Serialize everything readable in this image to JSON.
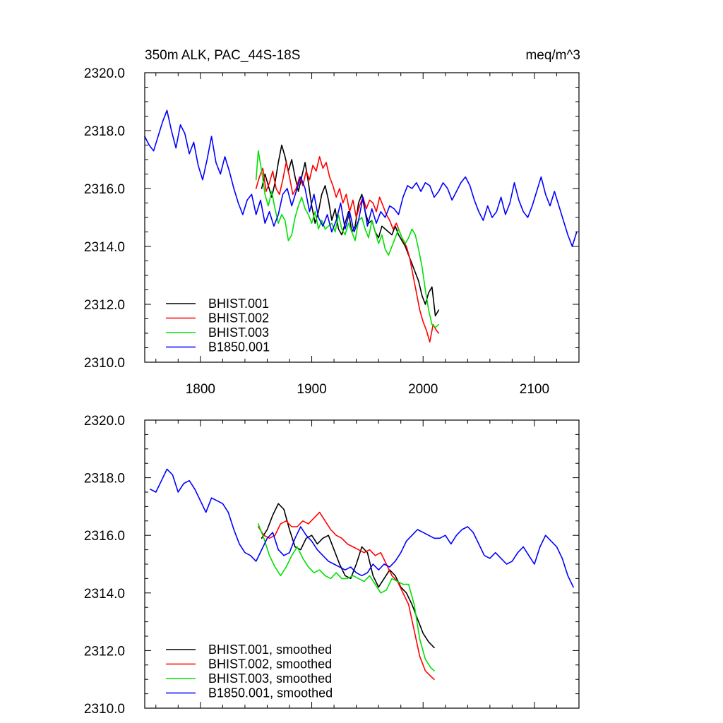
{
  "chart_data": [
    {
      "type": "line",
      "title": "350m ALK, PAC_44S-18S",
      "units": "meq/m^3",
      "xlim": [
        1750,
        2140
      ],
      "ylim": [
        2310,
        2320
      ],
      "xticks": [
        1800,
        1900,
        2000,
        2100
      ],
      "yticks": [
        2310,
        2312,
        2314,
        2316,
        2318,
        2320
      ],
      "xtick_labels": [
        "1800",
        "1900",
        "2000",
        "2100"
      ],
      "ytick_labels": [
        "2310.0",
        "2312.0",
        "2314.0",
        "2316.0",
        "2318.0",
        "2320.0"
      ],
      "legend_position": "bottom-left",
      "series": [
        {
          "name": "BHIST.001",
          "color": "#000000",
          "x": [
            1855,
            1858,
            1861,
            1864,
            1867,
            1870,
            1873,
            1876,
            1879,
            1882,
            1885,
            1888,
            1891,
            1894,
            1897,
            1900,
            1903,
            1906,
            1909,
            1912,
            1915,
            1918,
            1921,
            1924,
            1927,
            1930,
            1933,
            1936,
            1939,
            1942,
            1945,
            1948,
            1951,
            1954,
            1957,
            1960,
            1963,
            1966,
            1969,
            1972,
            1975,
            1978,
            1981,
            1984,
            1987,
            1990,
            1993,
            1996,
            1999,
            2002,
            2005,
            2008,
            2011,
            2014
          ],
          "y": [
            2316.0,
            2316.5,
            2316.1,
            2315.7,
            2316.2,
            2316.9,
            2317.5,
            2317.1,
            2316.6,
            2317.0,
            2316.4,
            2315.9,
            2316.4,
            2316.9,
            2316.2,
            2315.4,
            2314.8,
            2315.2,
            2315.8,
            2316.1,
            2315.6,
            2314.9,
            2315.3,
            2314.6,
            2314.4,
            2314.8,
            2315.2,
            2314.5,
            2314.7,
            2315.5,
            2315.8,
            2315.2,
            2314.8,
            2314.9,
            2314.5,
            2314.3,
            2314.7,
            2314.6,
            2314.5,
            2314.4,
            2314.7,
            2314.4,
            2314.2,
            2314.0,
            2313.7,
            2313.4,
            2313.1,
            2312.8,
            2312.3,
            2312.0,
            2312.4,
            2312.6,
            2311.6,
            2311.8
          ]
        },
        {
          "name": "BHIST.002",
          "color": "#ff0000",
          "x": [
            1850,
            1853,
            1856,
            1859,
            1862,
            1865,
            1868,
            1871,
            1874,
            1877,
            1880,
            1883,
            1886,
            1889,
            1892,
            1895,
            1898,
            1901,
            1904,
            1907,
            1910,
            1913,
            1916,
            1919,
            1922,
            1925,
            1928,
            1931,
            1934,
            1937,
            1940,
            1943,
            1946,
            1949,
            1952,
            1955,
            1958,
            1961,
            1964,
            1967,
            1970,
            1973,
            1976,
            1979,
            1982,
            1985,
            1988,
            1991,
            1994,
            1997,
            2000,
            2003,
            2006,
            2009,
            2012,
            2014
          ],
          "y": [
            2316.0,
            2316.4,
            2316.7,
            2315.9,
            2316.2,
            2316.6,
            2316.0,
            2315.8,
            2316.3,
            2316.9,
            2316.4,
            2315.8,
            2316.0,
            2316.4,
            2316.1,
            2316.6,
            2316.3,
            2316.8,
            2316.6,
            2317.1,
            2316.7,
            2316.9,
            2316.4,
            2316.1,
            2315.7,
            2316.0,
            2315.5,
            2315.8,
            2315.2,
            2315.6,
            2315.0,
            2315.4,
            2315.7,
            2315.3,
            2315.6,
            2315.5,
            2315.2,
            2315.7,
            2315.4,
            2315.1,
            2314.9,
            2314.6,
            2314.8,
            2314.5,
            2314.2,
            2314.0,
            2313.6,
            2313.0,
            2312.4,
            2311.8,
            2311.4,
            2311.1,
            2310.7,
            2311.3,
            2311.1,
            2311.0
          ]
        },
        {
          "name": "BHIST.003",
          "color": "#00e000",
          "x": [
            1850,
            1852,
            1855,
            1858,
            1861,
            1864,
            1867,
            1870,
            1873,
            1876,
            1879,
            1882,
            1885,
            1888,
            1891,
            1894,
            1897,
            1900,
            1903,
            1906,
            1909,
            1912,
            1915,
            1918,
            1921,
            1924,
            1927,
            1930,
            1933,
            1936,
            1939,
            1942,
            1945,
            1948,
            1951,
            1954,
            1957,
            1960,
            1963,
            1966,
            1969,
            1972,
            1975,
            1978,
            1981,
            1984,
            1987,
            1990,
            1993,
            1996,
            1999,
            2002,
            2005,
            2008,
            2011,
            2014
          ],
          "y": [
            2316.3,
            2317.3,
            2316.6,
            2315.8,
            2315.4,
            2315.9,
            2315.3,
            2314.8,
            2315.1,
            2314.9,
            2314.2,
            2314.4,
            2315.0,
            2315.4,
            2315.7,
            2315.3,
            2315.1,
            2314.8,
            2315.2,
            2314.6,
            2314.9,
            2314.6,
            2314.7,
            2314.8,
            2314.5,
            2315.1,
            2314.6,
            2314.4,
            2314.8,
            2314.5,
            2314.2,
            2314.9,
            2315.0,
            2314.6,
            2314.3,
            2314.9,
            2314.5,
            2314.1,
            2314.4,
            2313.9,
            2313.7,
            2314.0,
            2314.3,
            2314.6,
            2314.3,
            2314.1,
            2314.3,
            2314.6,
            2314.4,
            2313.9,
            2313.3,
            2312.5,
            2311.8,
            2311.3,
            2311.2,
            2311.3
          ]
        },
        {
          "name": "B1850.001",
          "color": "#0000ff",
          "x": [
            1750,
            1754,
            1758,
            1762,
            1766,
            1770,
            1774,
            1778,
            1782,
            1786,
            1790,
            1794,
            1798,
            1802,
            1806,
            1810,
            1814,
            1818,
            1822,
            1826,
            1830,
            1834,
            1838,
            1842,
            1846,
            1850,
            1854,
            1858,
            1862,
            1866,
            1870,
            1874,
            1878,
            1882,
            1886,
            1890,
            1894,
            1898,
            1902,
            1906,
            1910,
            1914,
            1918,
            1922,
            1926,
            1930,
            1934,
            1938,
            1942,
            1946,
            1950,
            1954,
            1958,
            1962,
            1966,
            1970,
            1974,
            1978,
            1982,
            1986,
            1990,
            1994,
            1998,
            2002,
            2006,
            2010,
            2014,
            2018,
            2022,
            2026,
            2030,
            2034,
            2038,
            2042,
            2046,
            2050,
            2054,
            2058,
            2062,
            2066,
            2070,
            2074,
            2078,
            2082,
            2086,
            2090,
            2094,
            2098,
            2102,
            2106,
            2110,
            2114,
            2118,
            2122,
            2126,
            2130,
            2134,
            2138
          ],
          "y": [
            2317.8,
            2317.5,
            2317.3,
            2317.8,
            2318.3,
            2318.7,
            2318.0,
            2317.4,
            2318.2,
            2317.9,
            2317.2,
            2317.6,
            2316.8,
            2316.3,
            2317.0,
            2317.8,
            2316.9,
            2316.5,
            2317.1,
            2316.6,
            2316.0,
            2315.5,
            2315.1,
            2315.6,
            2315.8,
            2315.1,
            2315.6,
            2314.8,
            2315.2,
            2314.7,
            2315.1,
            2315.8,
            2316.0,
            2315.4,
            2315.9,
            2316.4,
            2316.0,
            2315.2,
            2315.8,
            2315.0,
            2314.7,
            2315.1,
            2314.5,
            2314.9,
            2315.5,
            2314.6,
            2315.2,
            2314.5,
            2314.9,
            2315.7,
            2314.7,
            2315.3,
            2314.8,
            2315.2,
            2315.0,
            2315.4,
            2315.3,
            2315.1,
            2315.7,
            2316.1,
            2316.0,
            2316.2,
            2315.9,
            2316.2,
            2316.1,
            2315.7,
            2315.9,
            2316.2,
            2316.0,
            2315.6,
            2315.9,
            2316.2,
            2316.4,
            2316.1,
            2315.6,
            2315.2,
            2314.9,
            2315.4,
            2315.0,
            2315.2,
            2315.7,
            2315.1,
            2315.5,
            2316.2,
            2315.6,
            2315.2,
            2315.0,
            2315.4,
            2315.9,
            2316.4,
            2315.8,
            2315.4,
            2315.9,
            2315.4,
            2314.9,
            2314.4,
            2314.0,
            2314.5
          ]
        }
      ]
    },
    {
      "type": "line",
      "title": "",
      "units": "",
      "xlim": [
        1750,
        2140
      ],
      "ylim": [
        2310,
        2320
      ],
      "xticks": [
        1800,
        1900,
        2000,
        2100
      ],
      "yticks": [
        2310,
        2312,
        2314,
        2316,
        2318,
        2320
      ],
      "xtick_labels": [],
      "ytick_labels": [
        "2310.0",
        "2312.0",
        "2314.0",
        "2316.0",
        "2318.0",
        "2320.0"
      ],
      "legend_position": "bottom-left",
      "series": [
        {
          "name": "BHIST.001, smoothed",
          "color": "#000000",
          "x": [
            1855,
            1860,
            1865,
            1870,
            1875,
            1880,
            1885,
            1890,
            1895,
            1900,
            1905,
            1910,
            1915,
            1920,
            1925,
            1930,
            1935,
            1940,
            1945,
            1950,
            1955,
            1960,
            1965,
            1970,
            1975,
            1980,
            1985,
            1990,
            1995,
            2000,
            2005,
            2010
          ],
          "y": [
            2315.9,
            2316.2,
            2316.7,
            2317.1,
            2316.9,
            2316.2,
            2315.6,
            2315.5,
            2315.9,
            2316.0,
            2315.7,
            2315.9,
            2316.0,
            2315.5,
            2315.0,
            2314.6,
            2314.5,
            2315.0,
            2315.6,
            2315.4,
            2314.6,
            2314.2,
            2314.5,
            2314.8,
            2314.6,
            2314.2,
            2314.0,
            2313.6,
            2313.1,
            2312.6,
            2312.3,
            2312.1
          ]
        },
        {
          "name": "BHIST.002, smoothed",
          "color": "#ff0000",
          "x": [
            1852,
            1857,
            1862,
            1867,
            1872,
            1877,
            1882,
            1887,
            1892,
            1897,
            1902,
            1907,
            1912,
            1917,
            1922,
            1927,
            1932,
            1937,
            1942,
            1947,
            1952,
            1957,
            1962,
            1967,
            1972,
            1977,
            1982,
            1987,
            1992,
            1997,
            2002,
            2007,
            2010
          ],
          "y": [
            2316.3,
            2316.0,
            2315.9,
            2316.0,
            2316.4,
            2316.5,
            2316.3,
            2316.3,
            2316.5,
            2316.4,
            2316.6,
            2316.8,
            2316.5,
            2316.2,
            2316.0,
            2315.9,
            2315.7,
            2315.6,
            2315.5,
            2315.4,
            2315.5,
            2315.3,
            2315.4,
            2315.0,
            2314.6,
            2314.4,
            2314.0,
            2313.6,
            2312.7,
            2311.8,
            2311.3,
            2311.1,
            2311.0
          ]
        },
        {
          "name": "BHIST.003, smoothed",
          "color": "#00e000",
          "x": [
            1852,
            1857,
            1862,
            1867,
            1872,
            1877,
            1882,
            1887,
            1892,
            1897,
            1902,
            1907,
            1912,
            1917,
            1922,
            1927,
            1932,
            1937,
            1942,
            1947,
            1952,
            1957,
            1962,
            1967,
            1972,
            1977,
            1982,
            1987,
            1992,
            1997,
            2002,
            2007,
            2010
          ],
          "y": [
            2316.4,
            2315.9,
            2315.3,
            2314.9,
            2314.6,
            2314.9,
            2315.3,
            2315.6,
            2315.2,
            2314.9,
            2314.7,
            2314.8,
            2314.6,
            2314.5,
            2314.7,
            2314.5,
            2314.5,
            2314.6,
            2314.5,
            2314.4,
            2314.6,
            2314.3,
            2314.0,
            2314.1,
            2314.5,
            2314.4,
            2314.3,
            2314.3,
            2313.6,
            2312.4,
            2311.7,
            2311.4,
            2311.3
          ]
        },
        {
          "name": "B1850.001, smoothed",
          "color": "#0000ff",
          "x": [
            1755,
            1760,
            1765,
            1770,
            1775,
            1780,
            1785,
            1790,
            1795,
            1800,
            1805,
            1810,
            1815,
            1820,
            1825,
            1830,
            1835,
            1840,
            1845,
            1850,
            1855,
            1860,
            1865,
            1870,
            1875,
            1880,
            1885,
            1890,
            1895,
            1900,
            1905,
            1910,
            1915,
            1920,
            1925,
            1930,
            1935,
            1940,
            1945,
            1950,
            1955,
            1960,
            1965,
            1970,
            1975,
            1980,
            1985,
            1990,
            1995,
            2000,
            2005,
            2010,
            2015,
            2020,
            2025,
            2030,
            2035,
            2040,
            2045,
            2050,
            2055,
            2060,
            2065,
            2070,
            2075,
            2080,
            2085,
            2090,
            2095,
            2100,
            2105,
            2110,
            2115,
            2120,
            2125,
            2130,
            2135
          ],
          "y": [
            2317.6,
            2317.5,
            2317.9,
            2318.3,
            2318.1,
            2317.5,
            2317.8,
            2317.9,
            2317.6,
            2317.2,
            2316.8,
            2317.3,
            2317.2,
            2317.1,
            2316.8,
            2316.2,
            2315.7,
            2315.4,
            2315.3,
            2315.1,
            2315.5,
            2315.9,
            2316.1,
            2315.5,
            2315.3,
            2315.4,
            2315.9,
            2316.3,
            2316.0,
            2315.8,
            2315.5,
            2315.3,
            2315.1,
            2315.0,
            2314.9,
            2314.8,
            2314.9,
            2314.7,
            2314.6,
            2314.7,
            2315.0,
            2314.8,
            2315.0,
            2314.9,
            2315.1,
            2315.4,
            2315.8,
            2316.0,
            2316.2,
            2316.1,
            2316.0,
            2315.9,
            2315.9,
            2316.0,
            2315.7,
            2316.0,
            2316.2,
            2316.3,
            2316.1,
            2315.7,
            2315.3,
            2315.2,
            2315.4,
            2315.2,
            2315.0,
            2315.1,
            2315.4,
            2315.6,
            2315.3,
            2315.0,
            2315.6,
            2316.0,
            2315.8,
            2315.6,
            2315.2,
            2314.6,
            2314.2
          ]
        }
      ]
    }
  ]
}
